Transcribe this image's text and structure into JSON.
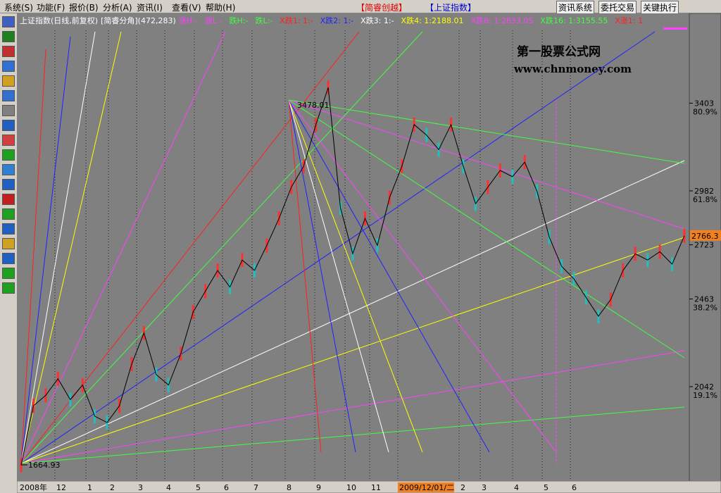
{
  "menu": {
    "items": [
      "系统(S)",
      "功能(F)",
      "报价(B)",
      "分析(A)",
      "资讯(I)",
      "查看(V)",
      "帮助(H)"
    ],
    "app": "【简睿创越】",
    "security": "【上证指数】",
    "buttons": [
      "资讯系统",
      "委托交易",
      "关键执行"
    ]
  },
  "header": {
    "name": "上证指数(日线,前复权)",
    "indicator": "[简睿分角](472,283)",
    "items": [
      {
        "text": "涨H:-",
        "color": "#ff40ff"
      },
      {
        "text": "涨L:-",
        "color": "#ff40ff"
      },
      {
        "text": "跌H:-",
        "color": "#40ff40"
      },
      {
        "text": "跌L:-",
        "color": "#40ff40"
      },
      {
        "text": "X跌1: 1:-",
        "color": "#ff2020"
      },
      {
        "text": "X跌2: 1:-",
        "color": "#2020ff"
      },
      {
        "text": "X跌3: 1:-",
        "color": "#ffffff"
      },
      {
        "text": "X跌4: 1:2188.01",
        "color": "#ffff00"
      },
      {
        "text": "X跌8: 1:2833.05",
        "color": "#ff40ff"
      },
      {
        "text": "X跌16: 1:3155.55",
        "color": "#40ff40"
      },
      {
        "text": "X涨1: 1",
        "color": "#ff2020"
      }
    ]
  },
  "watermark": {
    "title": "第一股票公式网",
    "url": "www.chnmoney.com"
  },
  "chart_data": {
    "type": "candlestick",
    "ylim": [
      1589,
      3834
    ],
    "yticks": [
      3403,
      2982,
      2723,
      2463,
      2042
    ],
    "pct_labels": [
      "80.9%",
      "61.8%",
      "38.2%",
      "19.1%"
    ],
    "last_price": 2766.3,
    "high_label": "3478.01",
    "low_label": "1664.93",
    "x_labels": [
      "2008年",
      "12",
      "1",
      "2",
      "3",
      "4",
      "5",
      "6",
      "7",
      "8",
      "9",
      "10",
      "11",
      "2009/12/01/二",
      "2",
      "3",
      "4",
      "5",
      "6"
    ],
    "values": [
      1665,
      1950,
      2000,
      2080,
      1980,
      2050,
      1900,
      1870,
      1950,
      2150,
      2300,
      2100,
      2050,
      2200,
      2400,
      2500,
      2600,
      2520,
      2650,
      2600,
      2720,
      2850,
      3000,
      3100,
      3300,
      3478,
      2900,
      2680,
      2850,
      2720,
      2950,
      3100,
      3300,
      3250,
      3180,
      3300,
      3100,
      2920,
      3000,
      3080,
      3050,
      3120,
      2980,
      2760,
      2620,
      2560,
      2470,
      2380,
      2460,
      2600,
      2680,
      2650,
      2690,
      2630,
      2766.3
    ]
  }
}
